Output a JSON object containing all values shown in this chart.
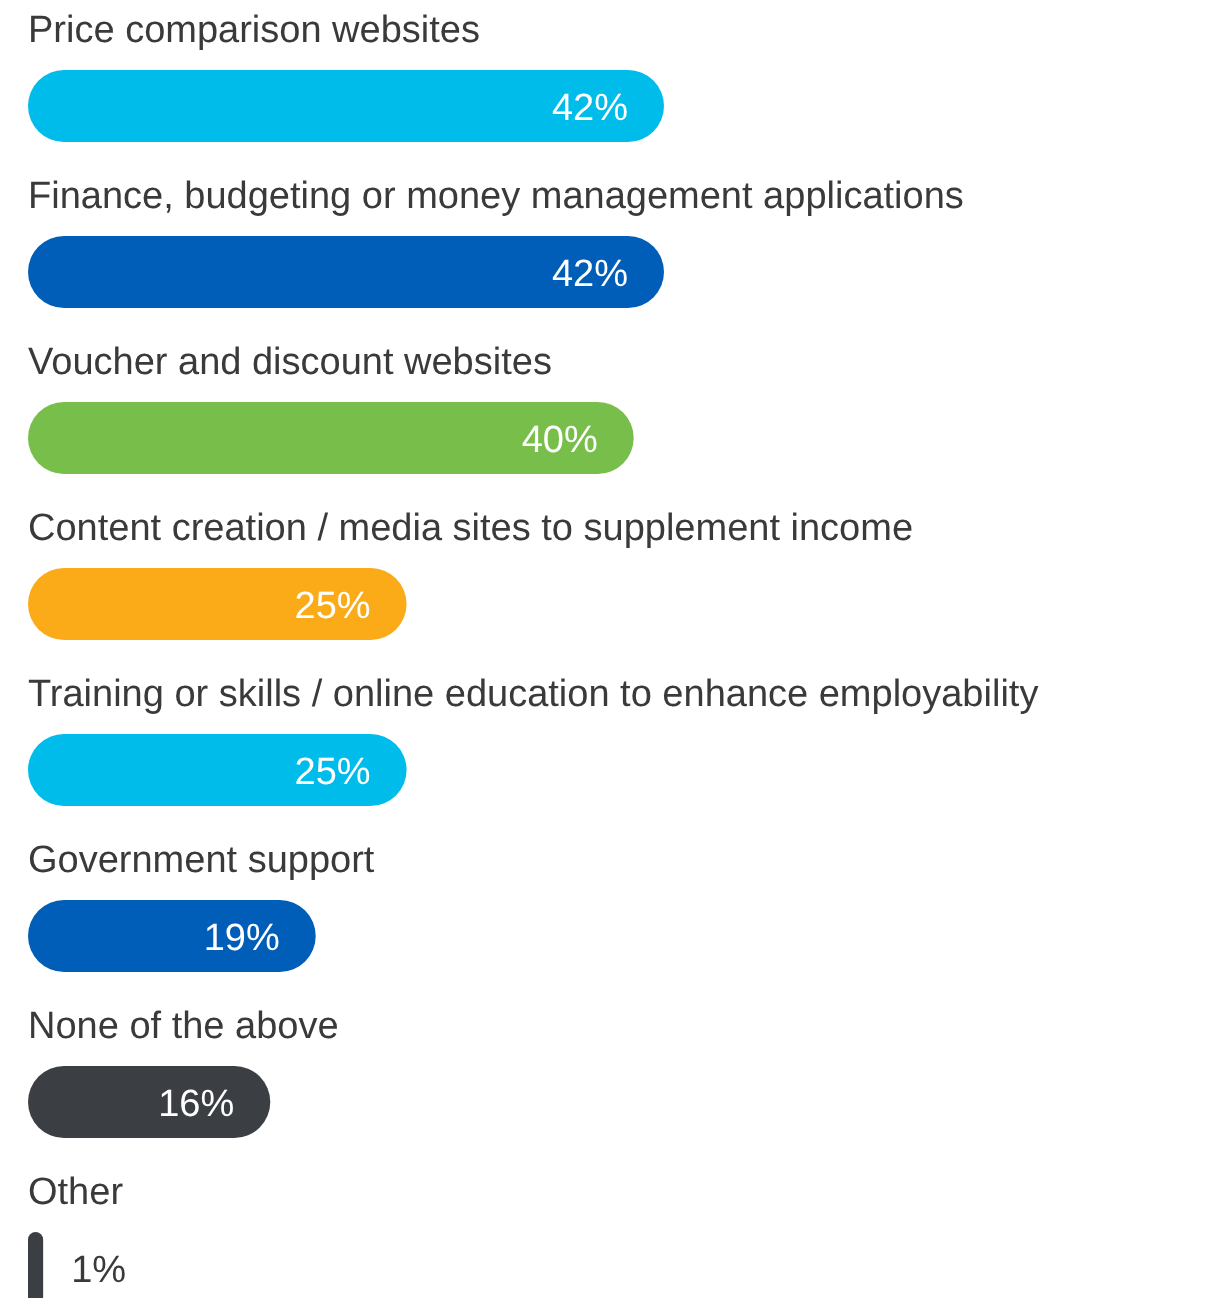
{
  "chart_data": {
    "type": "bar",
    "orientation": "horizontal",
    "categories": [
      "Price comparison websites",
      "Finance, budgeting or money management applications",
      "Voucher and discount websites",
      "Content creation / media sites to supplement income",
      "Training or skills / online education to enhance employability",
      "Government support",
      "None of the above",
      "Other"
    ],
    "values": [
      42,
      42,
      40,
      25,
      25,
      19,
      16,
      1
    ],
    "colors": [
      "#00bceb",
      "#005eb8",
      "#78be4b",
      "#fbab18",
      "#00bceb",
      "#005eb8",
      "#3b3e43",
      "#3b3e43"
    ],
    "value_labels": [
      "42%",
      "42%",
      "40%",
      "25%",
      "25%",
      "19%",
      "16%",
      "1%"
    ]
  }
}
